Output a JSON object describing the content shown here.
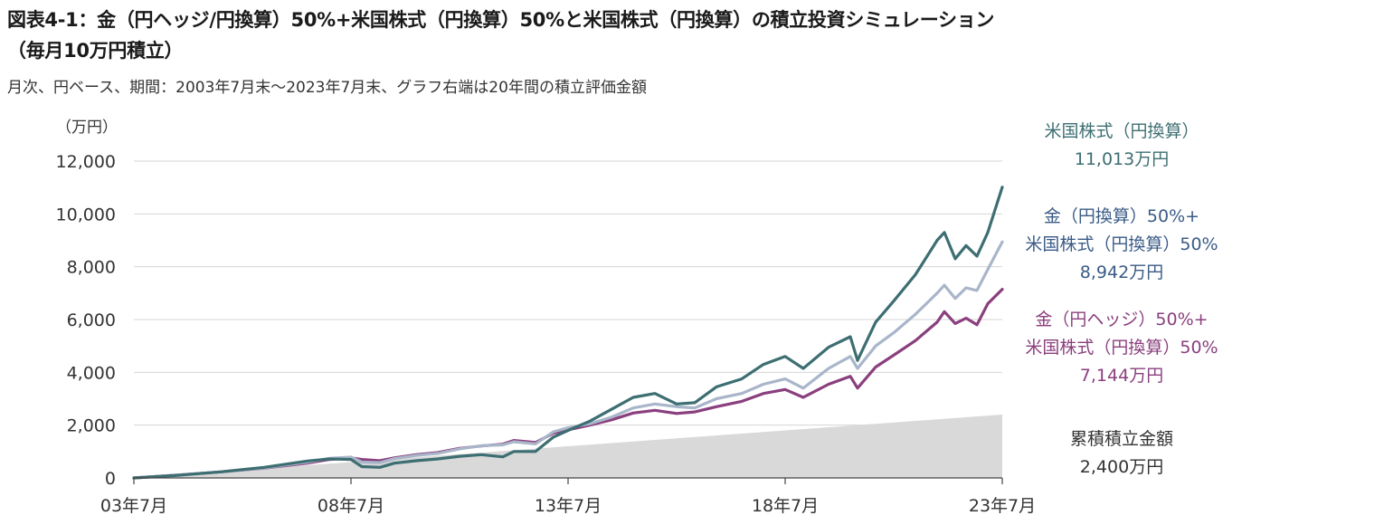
{
  "title_line1": "図表4-1：金（円ヘッジ/円換算）50%+米国株式（円換算）50%と米国株式（円換算）の積立投資シミュレーション",
  "title_line2": "（毎月10万円積立）",
  "subtitle": "月次、円ベース、期間：2003年7月末～2023年7月末、グラフ右端は20年間の積立評価金額",
  "colors": {
    "us_stock": "#3d6e72",
    "gold_jpy_mix": "#a9b6ca",
    "gold_hedged_mix": "#8a3f7e",
    "cumulative": "#d9d9d9",
    "label_mix_jpy": "#3a5b86"
  },
  "chart_data": {
    "type": "line",
    "unit_label": "（万円）",
    "ylim": [
      0,
      12000
    ],
    "yticks": [
      "0",
      "2,000",
      "4,000",
      "6,000",
      "8,000",
      "10,000",
      "12,000"
    ],
    "xtick_labels": [
      "03年7月",
      "08年7月",
      "13年7月",
      "18年7月",
      "23年7月"
    ],
    "x_range": [
      "2003-07",
      "2023-07"
    ],
    "grid": "horizontal",
    "series": [
      {
        "key": "cumulative",
        "type": "area",
        "label_lines": [
          "累積積立金額",
          "2,400万円"
        ],
        "points": [
          [
            "2003-07",
            0
          ],
          [
            "2023-07",
            2400
          ]
        ]
      },
      {
        "key": "gold_hedged_mix",
        "label_lines": [
          "金（円ヘッジ）50%+",
          "米国株式（円換算）50%",
          "7,144万円"
        ],
        "points": [
          [
            "2003-07",
            0
          ],
          [
            "2004-07",
            110
          ],
          [
            "2005-07",
            230
          ],
          [
            "2006-07",
            370
          ],
          [
            "2007-07",
            560
          ],
          [
            "2008-01",
            700
          ],
          [
            "2008-07",
            760
          ],
          [
            "2008-10",
            700
          ],
          [
            "2009-03",
            650
          ],
          [
            "2009-07",
            760
          ],
          [
            "2010-01",
            880
          ],
          [
            "2010-07",
            960
          ],
          [
            "2011-01",
            1120
          ],
          [
            "2011-07",
            1210
          ],
          [
            "2012-01",
            1280
          ],
          [
            "2012-04",
            1420
          ],
          [
            "2012-10",
            1340
          ],
          [
            "2013-03",
            1700
          ],
          [
            "2013-07",
            1820
          ],
          [
            "2014-01",
            2000
          ],
          [
            "2014-07",
            2200
          ],
          [
            "2015-01",
            2460
          ],
          [
            "2015-07",
            2560
          ],
          [
            "2016-01",
            2440
          ],
          [
            "2016-06",
            2500
          ],
          [
            "2016-12",
            2700
          ],
          [
            "2017-07",
            2900
          ],
          [
            "2018-01",
            3200
          ],
          [
            "2018-07",
            3350
          ],
          [
            "2018-12",
            3050
          ],
          [
            "2019-07",
            3550
          ],
          [
            "2020-01",
            3850
          ],
          [
            "2020-03",
            3400
          ],
          [
            "2020-08",
            4200
          ],
          [
            "2021-01",
            4650
          ],
          [
            "2021-07",
            5200
          ],
          [
            "2022-01",
            5900
          ],
          [
            "2022-03",
            6300
          ],
          [
            "2022-06",
            5850
          ],
          [
            "2022-09",
            6050
          ],
          [
            "2022-12",
            5800
          ],
          [
            "2023-03",
            6600
          ],
          [
            "2023-07",
            7144
          ]
        ]
      },
      {
        "key": "gold_jpy_mix",
        "label_lines": [
          "金（円換算）50%+",
          "米国株式（円換算）50%",
          "8,942万円"
        ],
        "points": [
          [
            "2003-07",
            0
          ],
          [
            "2004-07",
            110
          ],
          [
            "2005-07",
            230
          ],
          [
            "2006-07",
            380
          ],
          [
            "2007-07",
            600
          ],
          [
            "2008-01",
            740
          ],
          [
            "2008-07",
            790
          ],
          [
            "2008-10",
            600
          ],
          [
            "2009-03",
            580
          ],
          [
            "2009-07",
            730
          ],
          [
            "2010-01",
            850
          ],
          [
            "2010-07",
            930
          ],
          [
            "2011-01",
            1100
          ],
          [
            "2011-07",
            1220
          ],
          [
            "2012-01",
            1250
          ],
          [
            "2012-04",
            1370
          ],
          [
            "2012-10",
            1290
          ],
          [
            "2013-03",
            1750
          ],
          [
            "2013-07",
            1900
          ],
          [
            "2014-01",
            2050
          ],
          [
            "2014-07",
            2300
          ],
          [
            "2015-01",
            2650
          ],
          [
            "2015-07",
            2800
          ],
          [
            "2016-01",
            2700
          ],
          [
            "2016-06",
            2650
          ],
          [
            "2016-12",
            3000
          ],
          [
            "2017-07",
            3200
          ],
          [
            "2018-01",
            3550
          ],
          [
            "2018-07",
            3750
          ],
          [
            "2018-12",
            3400
          ],
          [
            "2019-07",
            4150
          ],
          [
            "2020-01",
            4600
          ],
          [
            "2020-03",
            4150
          ],
          [
            "2020-08",
            5000
          ],
          [
            "2021-01",
            5500
          ],
          [
            "2021-07",
            6200
          ],
          [
            "2022-01",
            7000
          ],
          [
            "2022-03",
            7300
          ],
          [
            "2022-06",
            6800
          ],
          [
            "2022-09",
            7200
          ],
          [
            "2022-12",
            7100
          ],
          [
            "2023-03",
            7900
          ],
          [
            "2023-07",
            8942
          ]
        ]
      },
      {
        "key": "us_stock",
        "label_lines": [
          "米国株式（円換算）",
          "11,013万円"
        ],
        "points": [
          [
            "2003-07",
            0
          ],
          [
            "2004-07",
            100
          ],
          [
            "2005-07",
            230
          ],
          [
            "2006-07",
            400
          ],
          [
            "2007-07",
            640
          ],
          [
            "2008-01",
            720
          ],
          [
            "2008-07",
            700
          ],
          [
            "2008-10",
            430
          ],
          [
            "2009-03",
            400
          ],
          [
            "2009-07",
            560
          ],
          [
            "2010-01",
            650
          ],
          [
            "2010-07",
            720
          ],
          [
            "2011-01",
            820
          ],
          [
            "2011-07",
            880
          ],
          [
            "2012-01",
            800
          ],
          [
            "2012-04",
            1000
          ],
          [
            "2012-10",
            1000
          ],
          [
            "2013-03",
            1550
          ],
          [
            "2013-07",
            1800
          ],
          [
            "2014-01",
            2150
          ],
          [
            "2014-07",
            2600
          ],
          [
            "2015-01",
            3050
          ],
          [
            "2015-07",
            3200
          ],
          [
            "2016-01",
            2800
          ],
          [
            "2016-06",
            2850
          ],
          [
            "2016-12",
            3450
          ],
          [
            "2017-07",
            3750
          ],
          [
            "2018-01",
            4300
          ],
          [
            "2018-07",
            4600
          ],
          [
            "2018-12",
            4150
          ],
          [
            "2019-07",
            4950
          ],
          [
            "2020-01",
            5350
          ],
          [
            "2020-03",
            4450
          ],
          [
            "2020-08",
            5900
          ],
          [
            "2021-01",
            6700
          ],
          [
            "2021-07",
            7700
          ],
          [
            "2022-01",
            9000
          ],
          [
            "2022-03",
            9300
          ],
          [
            "2022-06",
            8300
          ],
          [
            "2022-09",
            8800
          ],
          [
            "2022-12",
            8400
          ],
          [
            "2023-03",
            9300
          ],
          [
            "2023-07",
            11013
          ]
        ]
      }
    ]
  }
}
